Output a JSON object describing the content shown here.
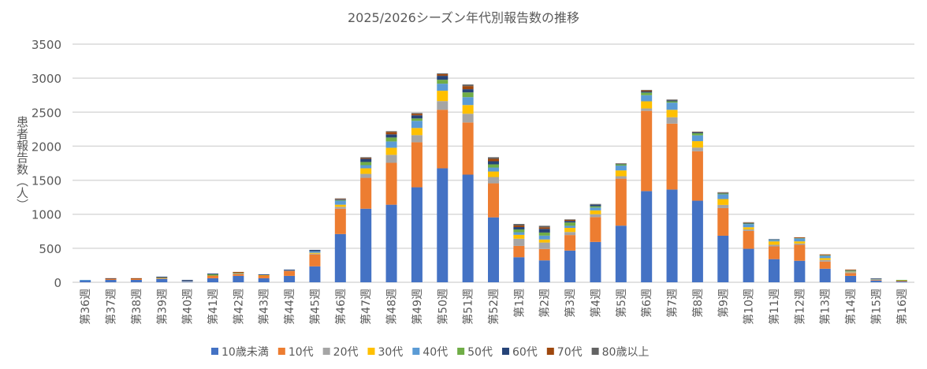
{
  "chart_data": {
    "type": "bar",
    "stacked": true,
    "title": "2025/2026シーズン年代別報告数の推移",
    "xlabel": "",
    "ylabel": "患者報告数（人）",
    "ylim": [
      0,
      3500
    ],
    "yticks": [
      0,
      500,
      1000,
      1500,
      2000,
      2500,
      3000,
      3500
    ],
    "grid": true,
    "legend_position": "bottom",
    "categories": [
      "第36週",
      "第37週",
      "第38週",
      "第39週",
      "第40週",
      "第41週",
      "第42週",
      "第43週",
      "第44週",
      "第45週",
      "第46週",
      "第47週",
      "第48週",
      "第49週",
      "第50週",
      "第51週",
      "第52週",
      "第1週",
      "第2週",
      "第3週",
      "第4週",
      "第5週",
      "第6週",
      "第7週",
      "第8週",
      "第9週",
      "第10週",
      "第11週",
      "第12週",
      "第13週",
      "第14週",
      "第15週",
      "第16週"
    ],
    "series": [
      {
        "name": "10歳未満",
        "color": "#4472C4",
        "values": [
          23,
          35,
          35,
          51,
          8,
          59,
          94,
          59,
          94,
          234,
          709,
          1081,
          1140,
          1396,
          1675,
          1582,
          954,
          368,
          322,
          466,
          593,
          832,
          1340,
          1363,
          1199,
          684,
          492,
          340,
          316,
          199,
          94,
          23,
          12
        ]
      },
      {
        "name": "10代",
        "color": "#ED7D31",
        "values": [
          0,
          12,
          12,
          5,
          0,
          39,
          27,
          39,
          74,
          176,
          372,
          454,
          616,
          662,
          861,
          767,
          500,
          166,
          167,
          228,
          365,
          691,
          1179,
          969,
          727,
          406,
          262,
          187,
          235,
          106,
          39,
          8,
          11
        ]
      },
      {
        "name": "20代",
        "color": "#A5A5A5",
        "values": [
          0,
          0,
          0,
          0,
          12,
          0,
          8,
          0,
          0,
          10,
          28,
          58,
          117,
          105,
          127,
          128,
          93,
          106,
          95,
          45,
          42,
          36,
          36,
          94,
          54,
          47,
          23,
          24,
          19,
          23,
          15,
          4,
          0
        ]
      },
      {
        "name": "30代",
        "color": "#FFC000",
        "values": [
          0,
          0,
          0,
          10,
          0,
          0,
          0,
          7,
          0,
          13,
          31,
          82,
          104,
          105,
          152,
          128,
          81,
          57,
          45,
          61,
          57,
          85,
          105,
          109,
          94,
          86,
          32,
          50,
          31,
          27,
          8,
          4,
          0
        ]
      },
      {
        "name": "40代",
        "color": "#5B9BD5",
        "values": [
          12,
          0,
          0,
          0,
          0,
          0,
          0,
          0,
          8,
          23,
          58,
          46,
          93,
          105,
          104,
          116,
          58,
          38,
          57,
          30,
          41,
          71,
          90,
          106,
          86,
          70,
          46,
          20,
          44,
          36,
          12,
          8,
          0
        ]
      },
      {
        "name": "50代",
        "color": "#70AD47",
        "values": [
          0,
          0,
          0,
          0,
          0,
          19,
          8,
          0,
          0,
          0,
          10,
          47,
          58,
          35,
          58,
          70,
          47,
          42,
          45,
          49,
          19,
          19,
          39,
          19,
          31,
          12,
          8,
          4,
          4,
          7,
          8,
          0,
          12
        ]
      },
      {
        "name": "60代",
        "color": "#264478",
        "values": [
          0,
          5,
          0,
          16,
          15,
          12,
          0,
          12,
          11,
          20,
          10,
          46,
          47,
          46,
          58,
          47,
          46,
          34,
          54,
          23,
          23,
          8,
          16,
          15,
          12,
          7,
          8,
          8,
          0,
          0,
          0,
          8,
          0
        ]
      },
      {
        "name": "70代",
        "color": "#9E480E",
        "values": [
          0,
          8,
          13,
          0,
          0,
          0,
          15,
          0,
          0,
          0,
          8,
          12,
          35,
          23,
          24,
          46,
          35,
          23,
          22,
          15,
          0,
          4,
          15,
          4,
          4,
          4,
          6,
          0,
          11,
          12,
          11,
          0,
          0
        ]
      },
      {
        "name": "80歳以上",
        "color": "#636363",
        "values": [
          0,
          0,
          0,
          0,
          0,
          0,
          0,
          0,
          0,
          0,
          7,
          12,
          11,
          12,
          11,
          23,
          24,
          23,
          23,
          8,
          11,
          4,
          8,
          8,
          8,
          8,
          6,
          0,
          0,
          0,
          0,
          4,
          0
        ]
      }
    ]
  }
}
